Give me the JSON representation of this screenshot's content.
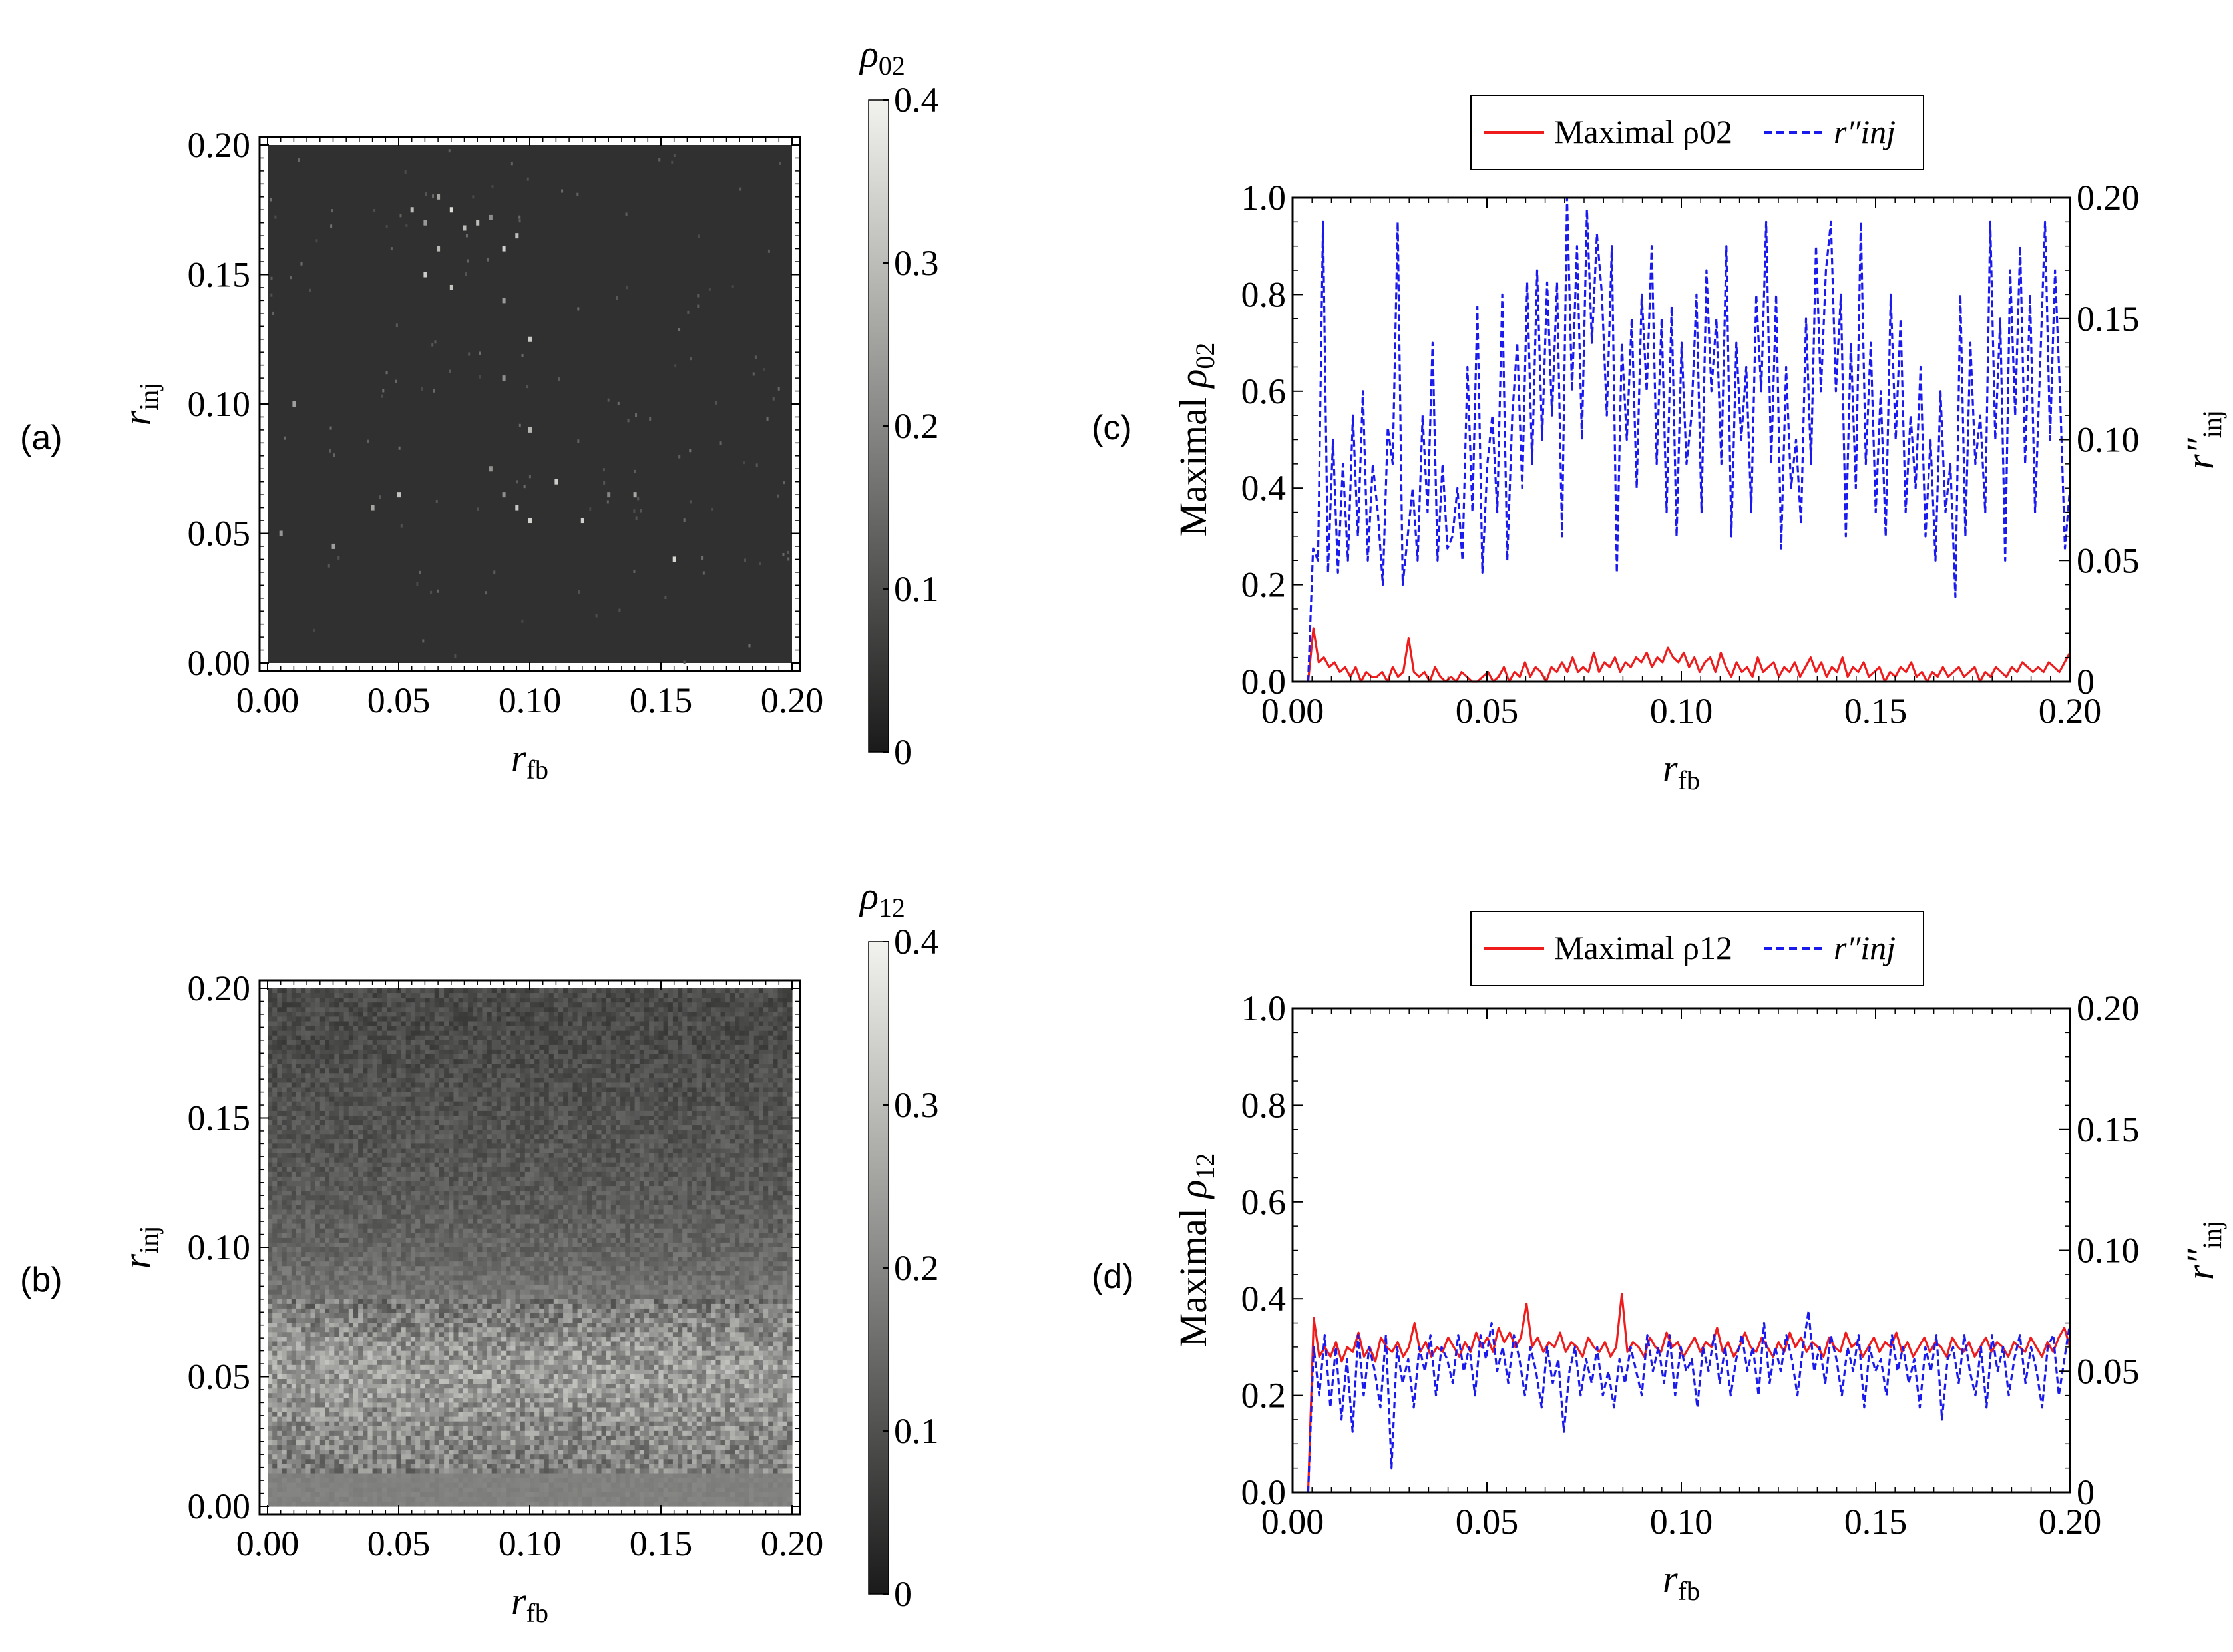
{
  "panel_labels": {
    "a": "(a)",
    "b": "(b)",
    "c": "(c)",
    "d": "(d)"
  },
  "legends": {
    "c": {
      "red": "Maximal ρ02",
      "blue": "r″inj"
    },
    "d": {
      "red": "Maximal ρ12",
      "blue": "r″inj"
    }
  },
  "colors": {
    "red": "#ee1c1c",
    "blue": "#1a1aee",
    "frame": "#000000"
  },
  "chart_data": [
    {
      "id": "a",
      "type": "heatmap",
      "xlabel": "r_fb",
      "ylabel": "r_inj",
      "xlim": [
        0,
        0.2
      ],
      "ylim": [
        0,
        0.2
      ],
      "xticks": [
        "0.00",
        "0.05",
        "0.10",
        "0.15",
        "0.20"
      ],
      "yticks": [
        "0.00",
        "0.05",
        "0.10",
        "0.15",
        "0.20"
      ],
      "colorbar": {
        "label": "ρ02",
        "range": [
          0,
          0.4
        ],
        "ticks": [
          "0",
          "0.1",
          "0.2",
          "0.3",
          "0.4"
        ]
      },
      "background_value": 0.04,
      "bright_spots": [
        [
          0.055,
          0.175
        ],
        [
          0.06,
          0.17
        ],
        [
          0.065,
          0.16
        ],
        [
          0.07,
          0.175
        ],
        [
          0.075,
          0.168
        ],
        [
          0.08,
          0.17
        ],
        [
          0.085,
          0.172
        ],
        [
          0.09,
          0.16
        ],
        [
          0.095,
          0.165
        ],
        [
          0.06,
          0.15
        ],
        [
          0.07,
          0.145
        ],
        [
          0.09,
          0.14
        ],
        [
          0.1,
          0.125
        ],
        [
          0.09,
          0.11
        ],
        [
          0.1,
          0.09
        ],
        [
          0.085,
          0.075
        ],
        [
          0.09,
          0.065
        ],
        [
          0.095,
          0.06
        ],
        [
          0.1,
          0.055
        ],
        [
          0.11,
          0.07
        ],
        [
          0.13,
          0.065
        ],
        [
          0.14,
          0.065
        ],
        [
          0.05,
          0.065
        ],
        [
          0.025,
          0.045
        ],
        [
          0.005,
          0.05
        ],
        [
          0.01,
          0.1
        ],
        [
          0.155,
          0.04
        ],
        [
          0.12,
          0.055
        ],
        [
          0.04,
          0.06
        ],
        [
          0.065,
          0.18
        ]
      ]
    },
    {
      "id": "b",
      "type": "heatmap",
      "xlabel": "r_fb",
      "ylabel": "r_inj",
      "xlim": [
        0,
        0.2
      ],
      "ylim": [
        0,
        0.2
      ],
      "xticks": [
        "0.00",
        "0.05",
        "0.10",
        "0.15",
        "0.20"
      ],
      "yticks": [
        "0.00",
        "0.05",
        "0.10",
        "0.15",
        "0.20"
      ],
      "colorbar": {
        "label": "ρ12",
        "range": [
          0,
          0.4
        ],
        "ticks": [
          "0",
          "0.1",
          "0.2",
          "0.3",
          "0.4"
        ]
      },
      "row_profile": {
        "r_inj": [
          0.0,
          0.01,
          0.02,
          0.03,
          0.04,
          0.05,
          0.06,
          0.07,
          0.08,
          0.1,
          0.12,
          0.14,
          0.16,
          0.18,
          0.2
        ],
        "mean_value": [
          0.18,
          0.18,
          0.2,
          0.21,
          0.23,
          0.24,
          0.23,
          0.2,
          0.17,
          0.14,
          0.12,
          0.11,
          0.1,
          0.09,
          0.09
        ]
      }
    },
    {
      "id": "c",
      "type": "line",
      "xlabel": "r_fb",
      "ylabel": "Maximal ρ02",
      "y2label": "r″inj",
      "xlim": [
        0,
        0.2
      ],
      "ylim": [
        0,
        1.0
      ],
      "y2lim": [
        0,
        0.2
      ],
      "xticks": [
        "0.00",
        "0.05",
        "0.10",
        "0.15",
        "0.20"
      ],
      "yticks": [
        "0.0",
        "0.2",
        "0.4",
        "0.6",
        "0.8",
        "1.0"
      ],
      "y2ticks": [
        "0",
        "0.05",
        "0.10",
        "0.15",
        "0.20"
      ],
      "series": [
        {
          "name": "Maximal ρ02",
          "axis": "left",
          "color": "red",
          "style": "solid",
          "x_start": 0.004,
          "x_end": 0.2,
          "values": [
            0.0,
            0.11,
            0.04,
            0.05,
            0.03,
            0.04,
            0.02,
            0.03,
            0.01,
            0.03,
            0.0,
            0.02,
            0.01,
            0.01,
            0.02,
            0.0,
            0.03,
            0.01,
            0.02,
            0.09,
            0.02,
            0.01,
            0.02,
            0.0,
            0.03,
            0.01,
            0.0,
            0.01,
            0.0,
            0.02,
            0.01,
            0.0,
            0.0,
            0.01,
            0.02,
            0.0,
            0.01,
            0.03,
            0.0,
            0.02,
            0.01,
            0.04,
            0.01,
            0.03,
            0.02,
            0.0,
            0.03,
            0.02,
            0.04,
            0.02,
            0.05,
            0.02,
            0.03,
            0.02,
            0.06,
            0.02,
            0.04,
            0.03,
            0.05,
            0.02,
            0.04,
            0.03,
            0.05,
            0.04,
            0.06,
            0.03,
            0.05,
            0.04,
            0.07,
            0.05,
            0.04,
            0.06,
            0.03,
            0.05,
            0.02,
            0.04,
            0.05,
            0.02,
            0.06,
            0.03,
            0.01,
            0.04,
            0.02,
            0.03,
            0.01,
            0.05,
            0.02,
            0.03,
            0.04,
            0.01,
            0.03,
            0.02,
            0.04,
            0.01,
            0.03,
            0.05,
            0.02,
            0.04,
            0.01,
            0.03,
            0.02,
            0.05,
            0.01,
            0.03,
            0.02,
            0.04,
            0.01,
            0.02,
            0.03,
            0.0,
            0.02,
            0.01,
            0.03,
            0.02,
            0.04,
            0.01,
            0.02,
            0.0,
            0.02,
            0.01,
            0.03,
            0.01,
            0.02,
            0.03,
            0.01,
            0.02,
            0.03,
            0.0,
            0.02,
            0.01,
            0.03,
            0.02,
            0.01,
            0.03,
            0.02,
            0.04,
            0.03,
            0.02,
            0.03,
            0.02,
            0.04,
            0.03,
            0.02,
            0.04,
            0.06
          ]
        },
        {
          "name": "r″inj",
          "axis": "right",
          "color": "blue",
          "style": "dashed",
          "x_start": 0.004,
          "x_end": 0.2,
          "values": [
            0.0,
            0.055,
            0.05,
            0.19,
            0.045,
            0.1,
            0.045,
            0.09,
            0.05,
            0.11,
            0.06,
            0.12,
            0.05,
            0.09,
            0.07,
            0.04,
            0.105,
            0.09,
            0.19,
            0.04,
            0.06,
            0.08,
            0.05,
            0.11,
            0.07,
            0.14,
            0.05,
            0.09,
            0.055,
            0.06,
            0.08,
            0.05,
            0.13,
            0.07,
            0.155,
            0.045,
            0.09,
            0.11,
            0.07,
            0.16,
            0.05,
            0.11,
            0.14,
            0.08,
            0.165,
            0.09,
            0.17,
            0.1,
            0.165,
            0.11,
            0.165,
            0.06,
            0.2,
            0.12,
            0.18,
            0.1,
            0.195,
            0.14,
            0.185,
            0.16,
            0.11,
            0.18,
            0.045,
            0.14,
            0.1,
            0.15,
            0.08,
            0.16,
            0.12,
            0.18,
            0.09,
            0.15,
            0.07,
            0.155,
            0.06,
            0.14,
            0.09,
            0.11,
            0.16,
            0.07,
            0.17,
            0.12,
            0.15,
            0.09,
            0.18,
            0.06,
            0.14,
            0.1,
            0.13,
            0.07,
            0.16,
            0.12,
            0.19,
            0.09,
            0.16,
            0.055,
            0.13,
            0.08,
            0.1,
            0.065,
            0.15,
            0.09,
            0.18,
            0.12,
            0.17,
            0.19,
            0.12,
            0.16,
            0.06,
            0.14,
            0.08,
            0.19,
            0.09,
            0.14,
            0.07,
            0.12,
            0.06,
            0.16,
            0.1,
            0.15,
            0.07,
            0.11,
            0.08,
            0.13,
            0.06,
            0.1,
            0.05,
            0.12,
            0.07,
            0.09,
            0.035,
            0.16,
            0.06,
            0.14,
            0.09,
            0.11,
            0.07,
            0.19,
            0.1,
            0.15,
            0.05,
            0.17,
            0.11,
            0.18,
            0.09,
            0.16,
            0.07,
            0.13,
            0.19,
            0.1,
            0.17,
            0.12,
            0.055,
            0.08
          ]
        }
      ]
    },
    {
      "id": "d",
      "type": "line",
      "xlabel": "r_fb",
      "ylabel": "Maximal ρ12",
      "y2label": "r″inj",
      "xlim": [
        0,
        0.2
      ],
      "ylim": [
        0,
        1.0
      ],
      "y2lim": [
        0,
        0.2
      ],
      "xticks": [
        "0.00",
        "0.05",
        "0.10",
        "0.15",
        "0.20"
      ],
      "yticks": [
        "0.0",
        "0.2",
        "0.4",
        "0.6",
        "0.8",
        "1.0"
      ],
      "y2ticks": [
        "0",
        "0.05",
        "0.10",
        "0.15",
        "0.20"
      ],
      "series": [
        {
          "name": "Maximal ρ12",
          "axis": "left",
          "color": "red",
          "style": "solid",
          "x_start": 0.004,
          "x_end": 0.2,
          "values": [
            0.0,
            0.36,
            0.28,
            0.3,
            0.28,
            0.31,
            0.27,
            0.3,
            0.29,
            0.33,
            0.28,
            0.3,
            0.27,
            0.32,
            0.3,
            0.29,
            0.31,
            0.28,
            0.3,
            0.35,
            0.29,
            0.31,
            0.28,
            0.3,
            0.29,
            0.32,
            0.3,
            0.28,
            0.31,
            0.29,
            0.33,
            0.3,
            0.32,
            0.29,
            0.34,
            0.31,
            0.33,
            0.3,
            0.32,
            0.39,
            0.3,
            0.32,
            0.29,
            0.31,
            0.3,
            0.33,
            0.29,
            0.31,
            0.3,
            0.28,
            0.32,
            0.3,
            0.29,
            0.31,
            0.28,
            0.3,
            0.41,
            0.29,
            0.31,
            0.3,
            0.28,
            0.32,
            0.3,
            0.29,
            0.33,
            0.3,
            0.31,
            0.28,
            0.3,
            0.32,
            0.29,
            0.31,
            0.3,
            0.34,
            0.29,
            0.31,
            0.28,
            0.3,
            0.33,
            0.3,
            0.29,
            0.32,
            0.3,
            0.28,
            0.31,
            0.29,
            0.33,
            0.3,
            0.32,
            0.29,
            0.31,
            0.3,
            0.28,
            0.32,
            0.3,
            0.29,
            0.33,
            0.3,
            0.31,
            0.28,
            0.3,
            0.32,
            0.29,
            0.31,
            0.3,
            0.33,
            0.29,
            0.31,
            0.28,
            0.3,
            0.32,
            0.29,
            0.31,
            0.3,
            0.28,
            0.32,
            0.3,
            0.29,
            0.31,
            0.28,
            0.3,
            0.32,
            0.29,
            0.31,
            0.3,
            0.28,
            0.31,
            0.3,
            0.29,
            0.32,
            0.3,
            0.28,
            0.31,
            0.29,
            0.32,
            0.34,
            0.3
          ]
        },
        {
          "name": "r″inj",
          "axis": "right",
          "color": "blue",
          "style": "dashed",
          "x_start": 0.004,
          "x_end": 0.2,
          "values": [
            0.0,
            0.06,
            0.04,
            0.065,
            0.035,
            0.06,
            0.03,
            0.055,
            0.025,
            0.065,
            0.04,
            0.06,
            0.05,
            0.035,
            0.065,
            0.01,
            0.06,
            0.045,
            0.055,
            0.035,
            0.06,
            0.05,
            0.065,
            0.04,
            0.06,
            0.055,
            0.045,
            0.065,
            0.05,
            0.06,
            0.04,
            0.065,
            0.055,
            0.07,
            0.05,
            0.06,
            0.045,
            0.065,
            0.055,
            0.04,
            0.06,
            0.05,
            0.035,
            0.06,
            0.045,
            0.055,
            0.025,
            0.05,
            0.06,
            0.04,
            0.055,
            0.045,
            0.06,
            0.04,
            0.05,
            0.035,
            0.055,
            0.045,
            0.06,
            0.05,
            0.04,
            0.065,
            0.05,
            0.06,
            0.045,
            0.065,
            0.04,
            0.06,
            0.05,
            0.055,
            0.035,
            0.06,
            0.05,
            0.065,
            0.045,
            0.06,
            0.04,
            0.055,
            0.065,
            0.05,
            0.06,
            0.04,
            0.07,
            0.045,
            0.06,
            0.05,
            0.065,
            0.055,
            0.04,
            0.06,
            0.075,
            0.05,
            0.06,
            0.045,
            0.065,
            0.055,
            0.04,
            0.06,
            0.05,
            0.065,
            0.035,
            0.06,
            0.05,
            0.055,
            0.04,
            0.065,
            0.05,
            0.06,
            0.045,
            0.055,
            0.035,
            0.06,
            0.05,
            0.065,
            0.03,
            0.055,
            0.06,
            0.045,
            0.065,
            0.05,
            0.04,
            0.06,
            0.035,
            0.065,
            0.05,
            0.06,
            0.04,
            0.055,
            0.065,
            0.045,
            0.06,
            0.05,
            0.035,
            0.06,
            0.065,
            0.04,
            0.055,
            0.07
          ]
        }
      ]
    }
  ]
}
